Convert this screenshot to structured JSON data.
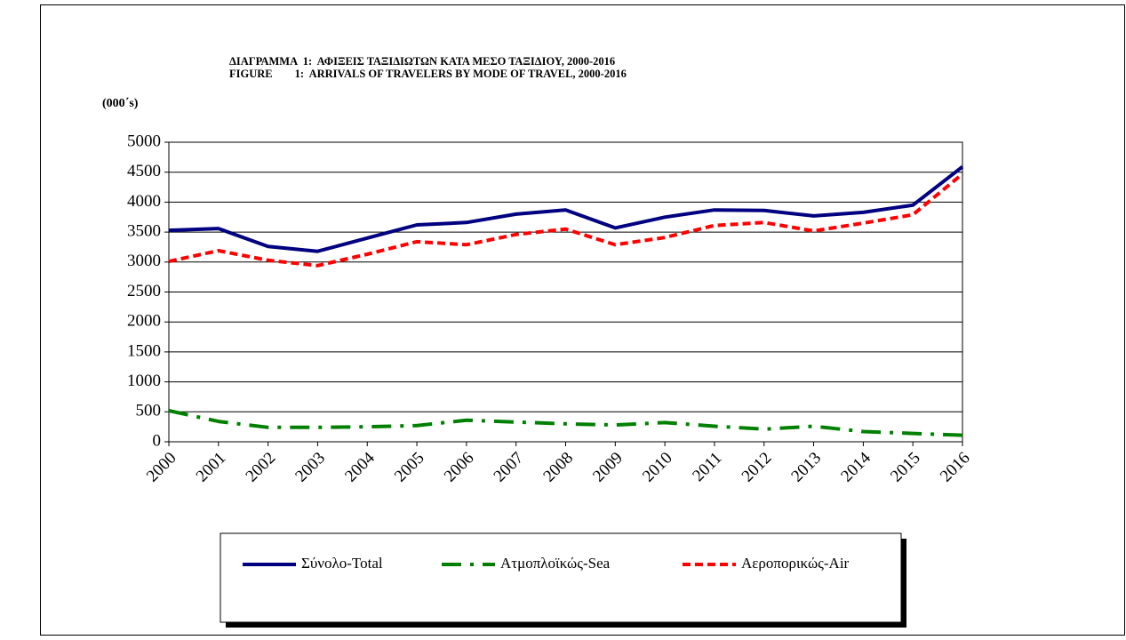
{
  "chart_data": {
    "type": "line",
    "title": [
      "ΔΙΑΓΡΑΜΜΑ  1:  ΑΦΙΞΕΙΣ ΤΑΞΙΔΙΩΤΩΝ ΚΑΤΑ ΜΕΣΟ ΤΑΞΙΔΙΟΥ, 2000-2016",
      "FIGURE        1:  ARRIVALS OF TRAVELERS BY MODE OF TRAVEL, 2000-2016"
    ],
    "y_label": "(000΄s)",
    "categories": [
      "2000",
      "2001",
      "2002",
      "2003",
      "2004",
      "2005",
      "2006",
      "2007",
      "2008",
      "2009",
      "2010",
      "2011",
      "2012",
      "2013",
      "2014",
      "2015",
      "2016"
    ],
    "series": [
      {
        "name": "Σύνολο-Total",
        "color": "#000080",
        "dash": "none",
        "values": [
          3530,
          3560,
          3260,
          3180,
          3400,
          3620,
          3660,
          3800,
          3870,
          3570,
          3750,
          3870,
          3860,
          3770,
          3830,
          3950,
          4590
        ]
      },
      {
        "name": "Ατμοπλοϊκώς-Sea",
        "color": "#008000",
        "dash": "22,10,4,10",
        "values": [
          520,
          340,
          240,
          240,
          250,
          270,
          360,
          330,
          300,
          280,
          320,
          260,
          210,
          260,
          170,
          140,
          110
        ]
      },
      {
        "name": "Αεροπορικώς-Air",
        "color": "#ff0000",
        "dash": "9,5",
        "values": [
          3010,
          3190,
          3030,
          2940,
          3130,
          3340,
          3290,
          3460,
          3550,
          3290,
          3410,
          3610,
          3660,
          3520,
          3650,
          3790,
          4470
        ]
      }
    ],
    "ylim": [
      0,
      5000
    ],
    "yticks": [
      0,
      500,
      1000,
      1500,
      2000,
      2500,
      3000,
      3500,
      4000,
      4500,
      5000
    ],
    "grid": true,
    "legend": "bottom"
  }
}
